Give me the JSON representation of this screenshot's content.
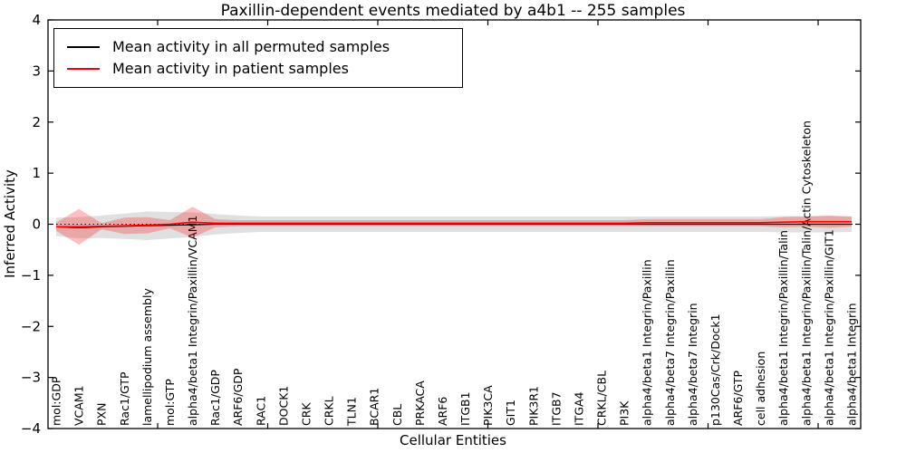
{
  "title": "Paxillin-dependent events mediated by a4b1 -- 255 samples",
  "x_axis": {
    "label": "Cellular Entities"
  },
  "y_axis": {
    "label": "Inferred Activity",
    "ticks": [
      "4",
      "3",
      "2",
      "1",
      "0",
      "−1",
      "−2",
      "−3",
      "−4"
    ]
  },
  "legend": {
    "items": [
      {
        "label": "Mean activity in all permuted samples",
        "color": "#000000"
      },
      {
        "label": "Mean activity in patient samples",
        "color": "#ff0000"
      }
    ]
  },
  "colors": {
    "frame": "#000000",
    "permuted_line": "#000000",
    "patient_line": "#ff0000",
    "permuted_band_fill": "#000000",
    "permuted_band_opacity": 0.12,
    "patient_band_fill": "#ff0000",
    "patient_band_opacity": 0.25,
    "zero_line": "#000000"
  },
  "chart_data": {
    "type": "line",
    "title": "Paxillin-dependent events mediated by a4b1 -- 255 samples",
    "xlabel": "Cellular Entities",
    "ylabel": "Inferred Activity",
    "ylim": [
      -4,
      4
    ],
    "grid": false,
    "legend_position": "upper left",
    "zero_line_style": "dotted",
    "categories": [
      "mol:GDP",
      "VCAM1",
      "PXN",
      "Rac1/GTP",
      "lamellipodium assembly",
      "mol:GTP",
      "alpha4/beta1 Integrin/Paxillin/VCAM1",
      "Rac1/GDP",
      "ARF6/GDP",
      "RAC1",
      "DOCK1",
      "CRK",
      "CRKL",
      "TLN1",
      "BCAR1",
      "CBL",
      "PRKACA",
      "ARF6",
      "ITGB1",
      "PIK3CA",
      "GIT1",
      "PIK3R1",
      "ITGB7",
      "ITGA4",
      "CRKL/CBL",
      "PI3K",
      "alpha4/beta1 Integrin/Paxillin",
      "alpha4/beta7 Integrin/Paxillin",
      "alpha4/beta7 Integrin",
      "p130Cas/Crk/Dock1",
      "ARF6/GTP",
      "cell adhesion",
      "alpha4/beta1 Integrin/Paxillin/Talin",
      "alpha4/beta1 Integrin/Paxillin/Talin/Actin Cytoskeleton",
      "alpha4/beta1 Integrin/Paxillin/GIT1",
      "alpha4/beta1 Integrin"
    ],
    "series": [
      {
        "name": "Mean activity in all permuted samples",
        "color": "#000000",
        "values": [
          -0.05,
          -0.07,
          -0.05,
          -0.04,
          -0.03,
          -0.02,
          -0.01,
          0,
          0,
          0,
          0,
          0,
          0,
          0,
          0,
          0,
          0,
          0,
          0,
          0,
          0,
          0,
          0,
          0,
          0,
          0,
          0,
          0,
          0,
          0,
          0,
          0,
          0,
          0,
          0,
          0
        ],
        "band_halfwidth": [
          0.18,
          0.21,
          0.22,
          0.25,
          0.28,
          0.26,
          0.24,
          0.2,
          0.17,
          0.15,
          0.15,
          0.15,
          0.15,
          0.15,
          0.15,
          0.15,
          0.15,
          0.15,
          0.15,
          0.15,
          0.15,
          0.15,
          0.15,
          0.15,
          0.15,
          0.15,
          0.15,
          0.15,
          0.15,
          0.15,
          0.15,
          0.15,
          0.16,
          0.16,
          0.16,
          0.15
        ]
      },
      {
        "name": "Mean activity in patient samples",
        "color": "#ff0000",
        "values": [
          -0.05,
          -0.05,
          -0.04,
          -0.03,
          -0.02,
          0,
          0.04,
          0.02,
          0.02,
          0.02,
          0.02,
          0.02,
          0.02,
          0.02,
          0.02,
          0.02,
          0.02,
          0.02,
          0.02,
          0.02,
          0.02,
          0.02,
          0.02,
          0.02,
          0.02,
          0.02,
          0.03,
          0.03,
          0.03,
          0.03,
          0.03,
          0.03,
          0.04,
          0.05,
          0.05,
          0.05
        ],
        "band_halfwidth": [
          0.08,
          0.35,
          0.06,
          0.16,
          0.16,
          0.08,
          0.3,
          0.08,
          0.06,
          0.06,
          0.06,
          0.06,
          0.06,
          0.06,
          0.06,
          0.06,
          0.06,
          0.06,
          0.06,
          0.06,
          0.06,
          0.06,
          0.06,
          0.06,
          0.06,
          0.06,
          0.07,
          0.07,
          0.07,
          0.07,
          0.07,
          0.07,
          0.1,
          0.1,
          0.12,
          0.1
        ]
      }
    ]
  }
}
